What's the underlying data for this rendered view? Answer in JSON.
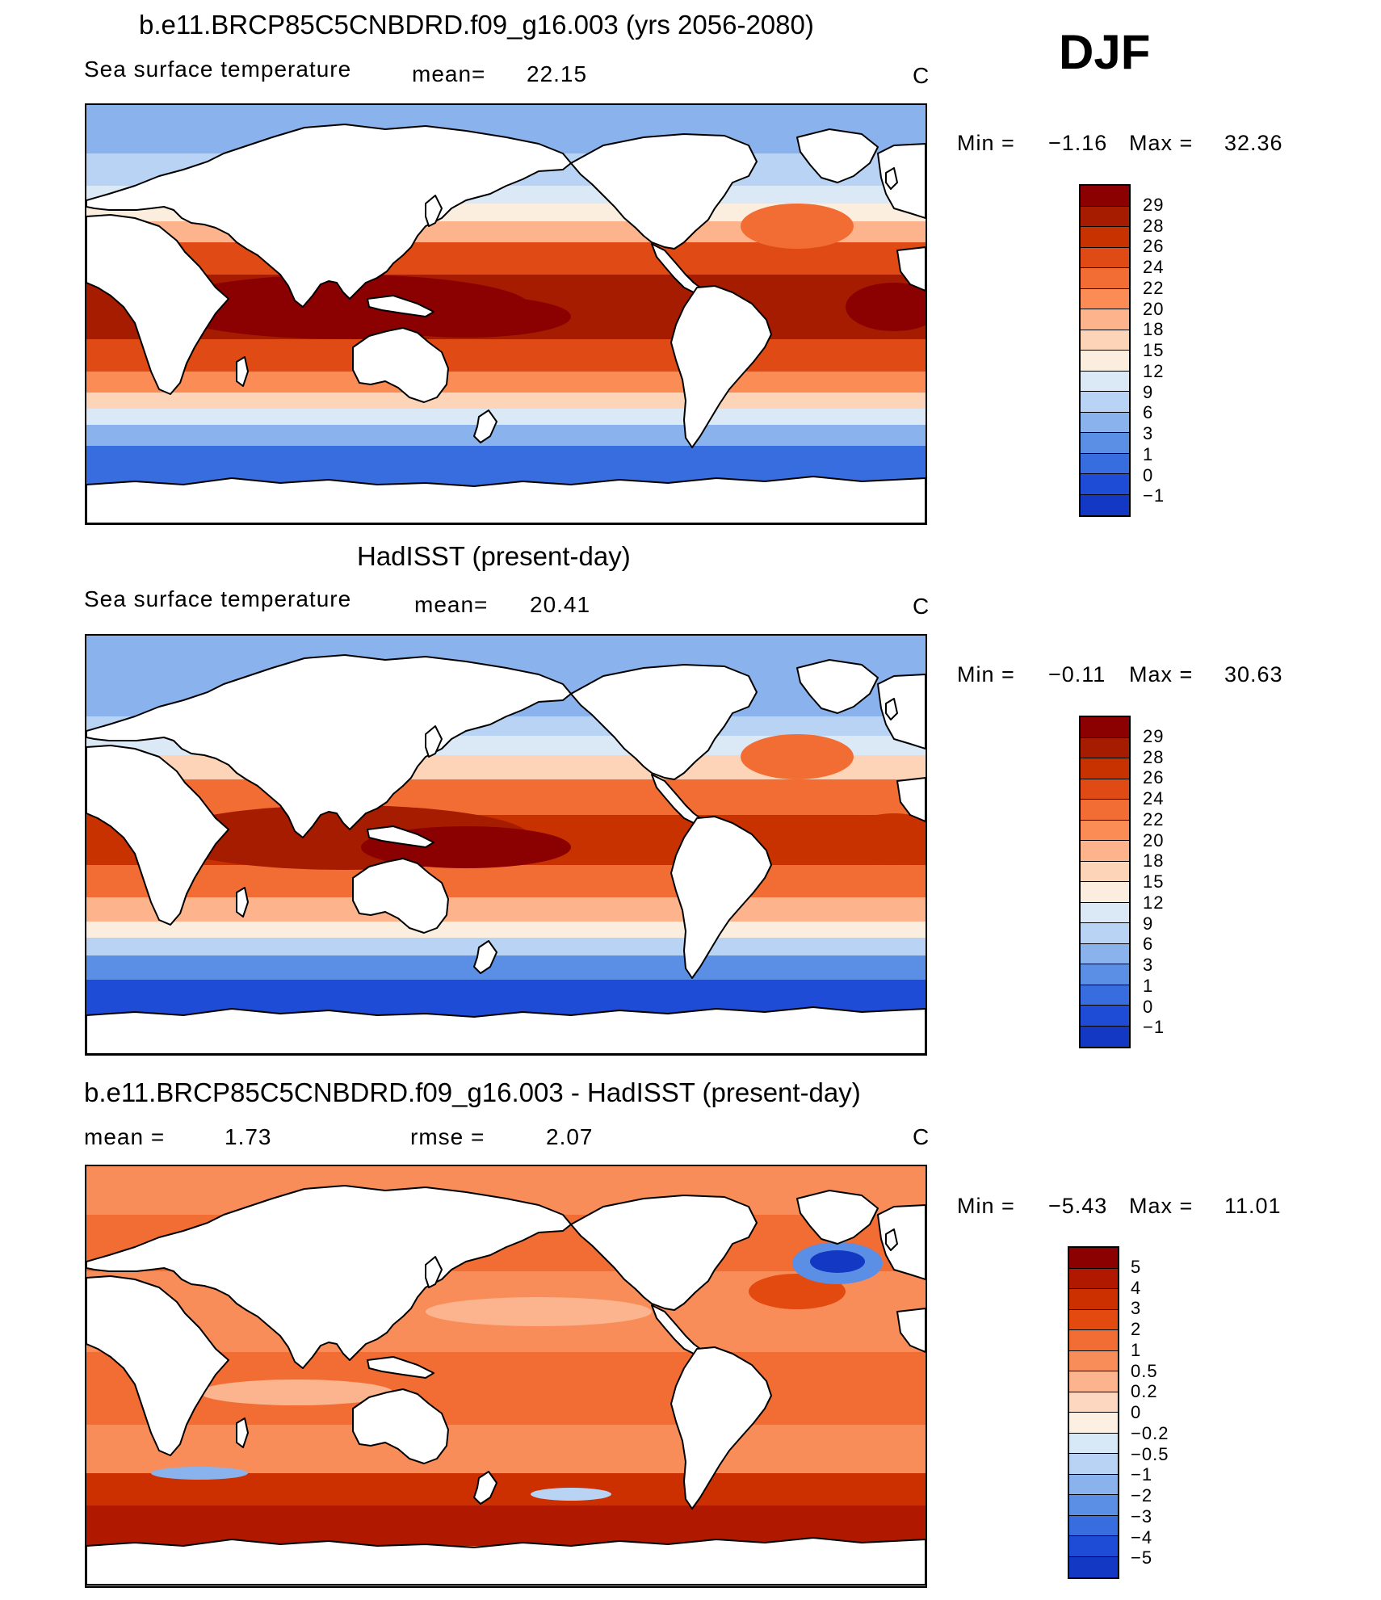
{
  "season": "DJF",
  "colors": {
    "sst_scale": [
      "#8b0000",
      "#a51c00",
      "#c83100",
      "#e04a14",
      "#f26d33",
      "#fb8c55",
      "#fdb38b",
      "#fdd4b7",
      "#fbeede",
      "#dbe9f6",
      "#b8d3f3",
      "#8ab3ee",
      "#5b8fe6",
      "#386ddf",
      "#1e4cd6",
      "#1338c4",
      "#0a25a8",
      "#021480"
    ],
    "diff_scale": [
      "#8b0000",
      "#b01800",
      "#cc3000",
      "#e24a10",
      "#f26d33",
      "#f88d5a",
      "#fbb48e",
      "#fdd7bf",
      "#fdf0e2",
      "#d7e8f7",
      "#b8d3f3",
      "#8ab3ee",
      "#5b8fe6",
      "#386ddf",
      "#1e4cd6",
      "#1338c4",
      "#0a25a8",
      "#021480"
    ],
    "land": "#ffffff",
    "coast": "#000000"
  },
  "panels": [
    {
      "title": "b.e11.BRCP85C5CNBDRD.f09_g16.003 (yrs 2056-2080)",
      "left_label": "Sea surface temperature",
      "stat1_label": "mean=",
      "stat1_value": "22.15",
      "units": "C",
      "min_label": "Min =",
      "min_value": "−1.16",
      "max_label": "Max =",
      "max_value": "32.36",
      "colorbar_labels": [
        "29",
        "28",
        "26",
        "24",
        "22",
        "20",
        "18",
        "15",
        "12",
        "9",
        "6",
        "3",
        "1",
        "0",
        "−1"
      ]
    },
    {
      "title": "HadISST (present-day)",
      "left_label": "Sea surface temperature",
      "stat1_label": "mean=",
      "stat1_value": "20.41",
      "units": "C",
      "min_label": "Min =",
      "min_value": "−0.11",
      "max_label": "Max =",
      "max_value": "30.63",
      "colorbar_labels": [
        "29",
        "28",
        "26",
        "24",
        "22",
        "20",
        "18",
        "15",
        "12",
        "9",
        "6",
        "3",
        "1",
        "0",
        "−1"
      ]
    },
    {
      "title": "b.e11.BRCP85C5CNBDRD.f09_g16.003 - HadISST (present-day)",
      "stat1_label": "mean =",
      "stat1_value": "1.73",
      "stat2_label": "rmse =",
      "stat2_value": "2.07",
      "units": "C",
      "min_label": "Min =",
      "min_value": "−5.43",
      "max_label": "Max =",
      "max_value": "11.01",
      "colorbar_labels": [
        "5",
        "4",
        "3",
        "2",
        "1",
        "0.5",
        "0.2",
        "0",
        "−0.2",
        "−0.5",
        "−1",
        "−2",
        "−3",
        "−4",
        "−5"
      ]
    }
  ]
}
